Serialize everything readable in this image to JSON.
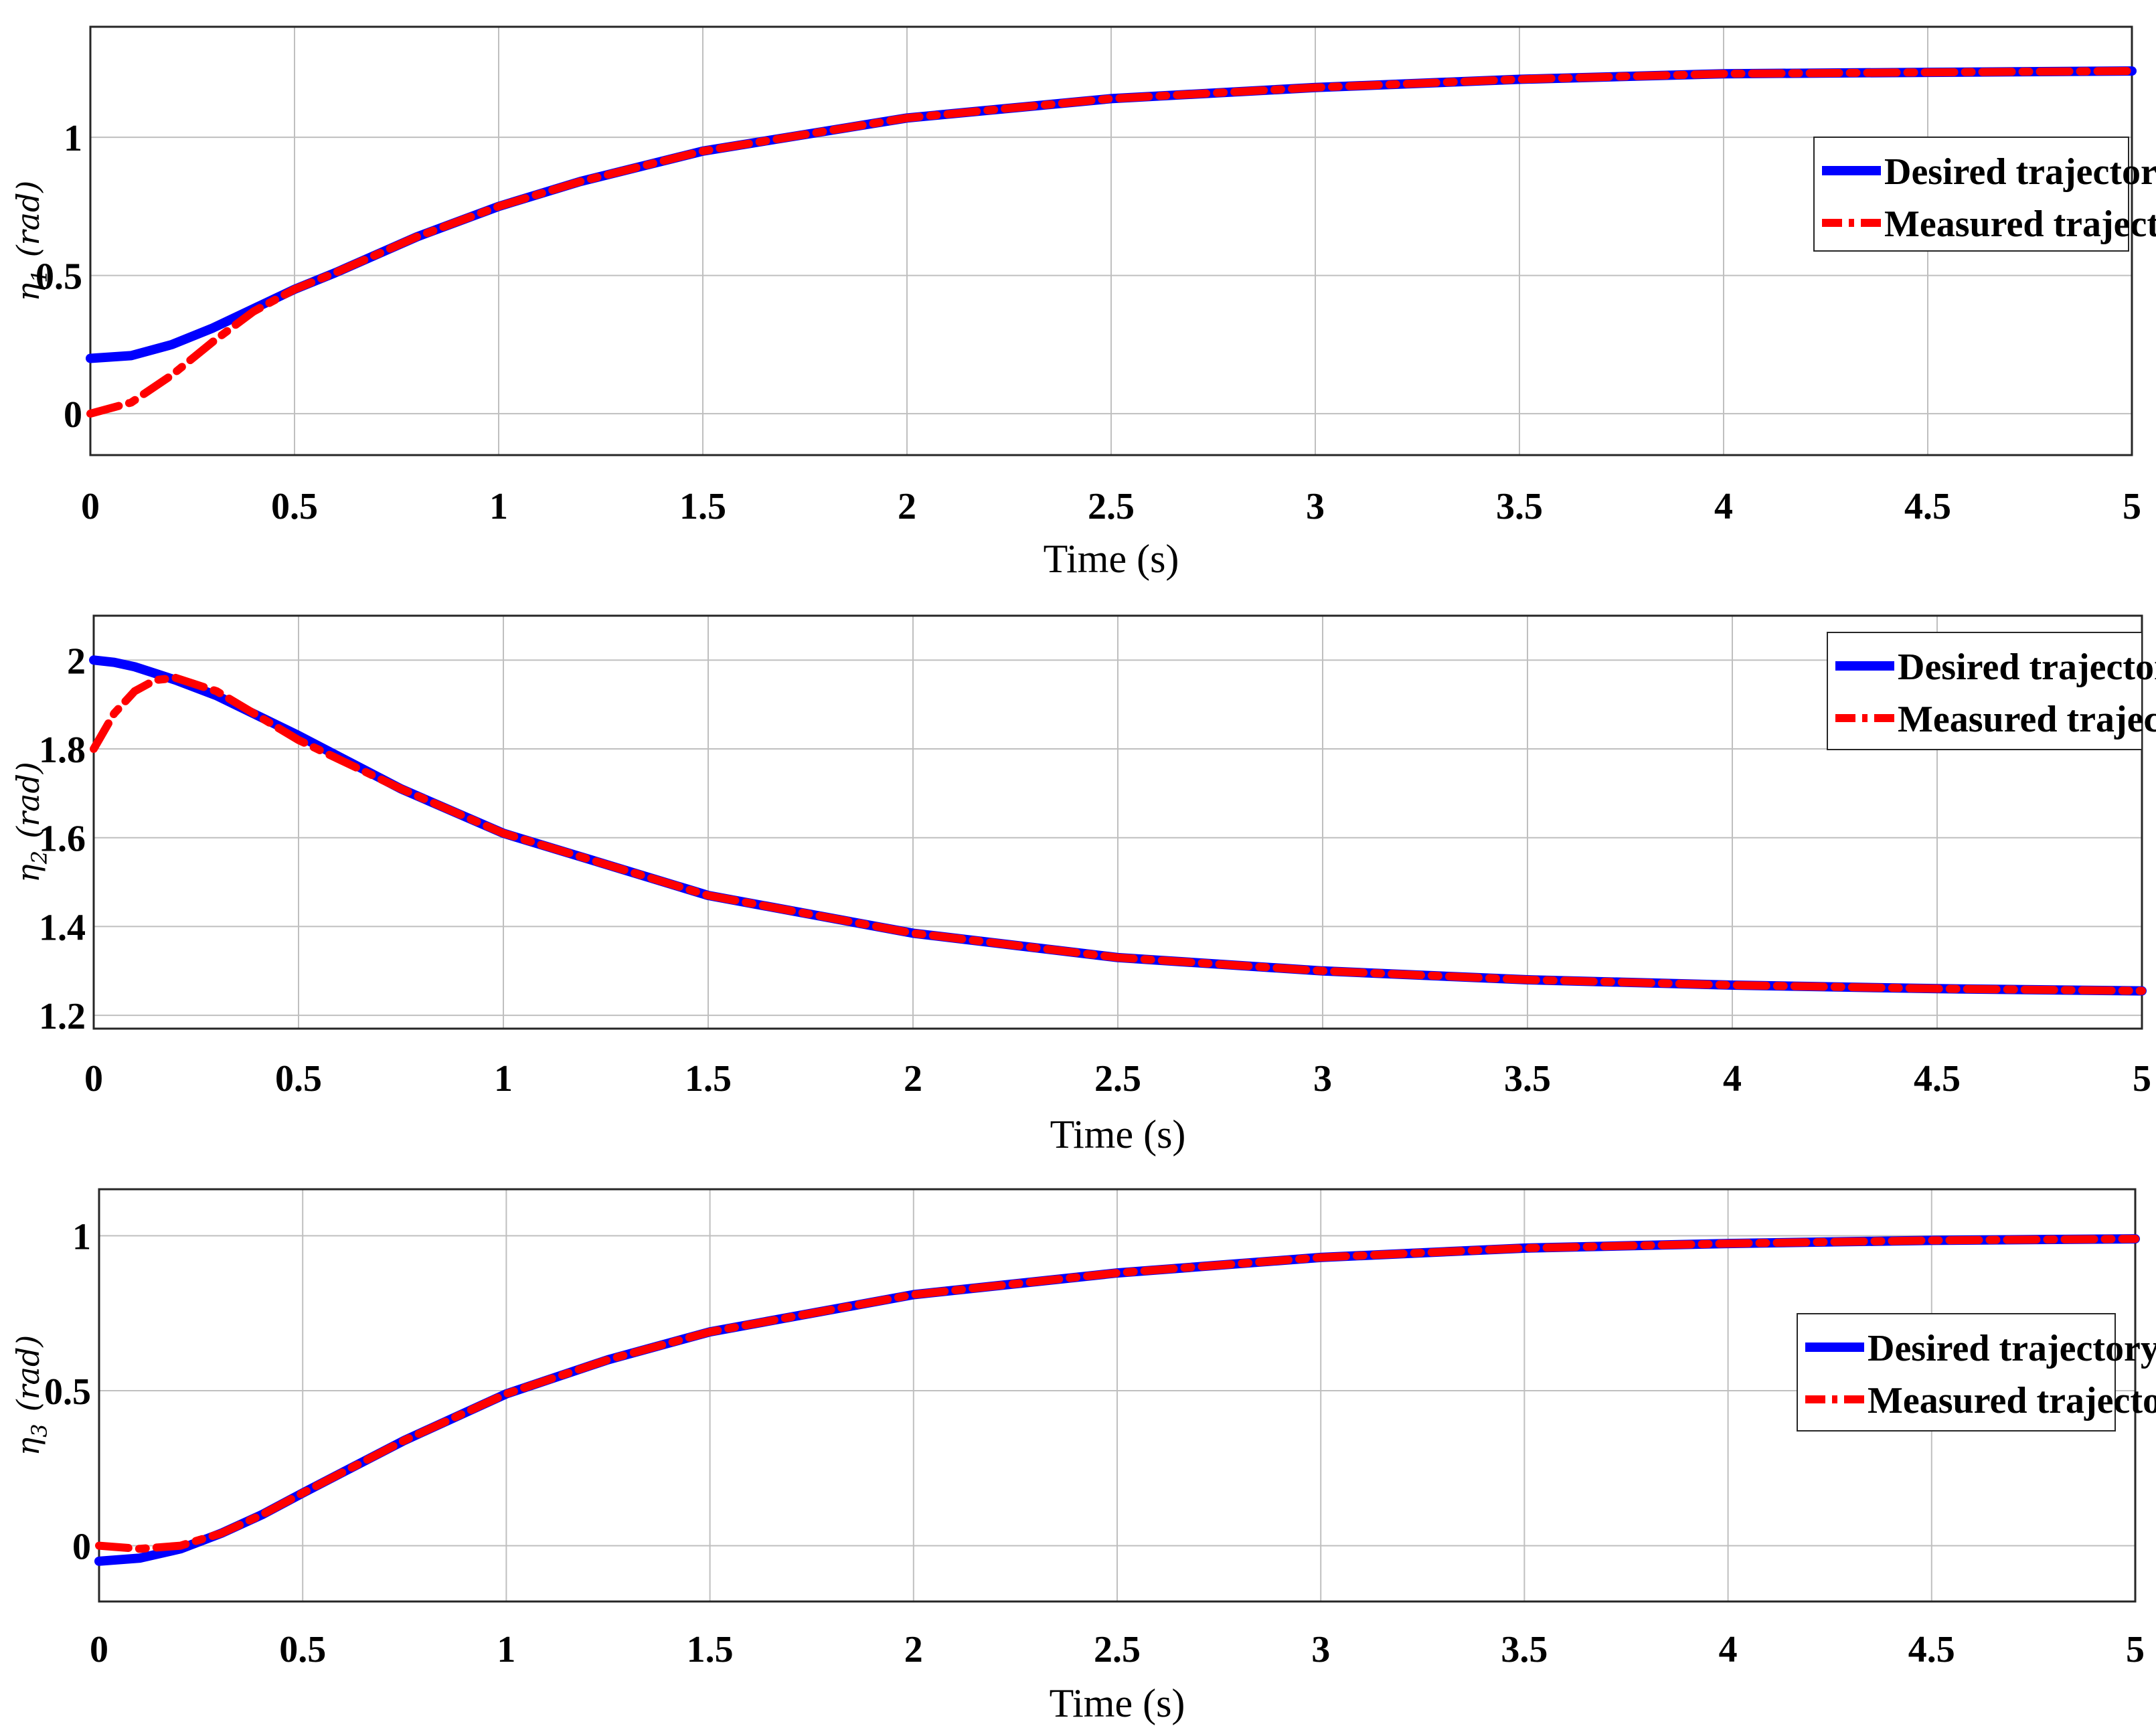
{
  "colors": {
    "desired": "#0000ff",
    "measured": "#ff0000",
    "grid": "#bfbfbf",
    "axes": "#262626"
  },
  "chart_data": [
    {
      "type": "line",
      "xlabel": "Time (s)",
      "ylabel": "η1 (rad)",
      "ylabel_symbol": "η",
      "ylabel_sub": "1",
      "ylabel_unit": "(rad)",
      "xlim": [
        0,
        5
      ],
      "ylim": [
        -0.15,
        1.4
      ],
      "xticks": [
        "0",
        "0.5",
        "1",
        "1.5",
        "2",
        "2.5",
        "3",
        "3.5",
        "4",
        "4.5",
        "5"
      ],
      "yticks": [
        "0",
        "0.5",
        "1"
      ],
      "grid": true,
      "legend": "right",
      "x": [
        0,
        0.1,
        0.2,
        0.3,
        0.4,
        0.5,
        0.6,
        0.8,
        1,
        1.2,
        1.5,
        2,
        2.5,
        3,
        3.5,
        4,
        4.5,
        5
      ],
      "series": [
        {
          "name": "Desired trajectory",
          "values": [
            0.2,
            0.21,
            0.25,
            0.31,
            0.38,
            0.45,
            0.51,
            0.64,
            0.75,
            0.84,
            0.95,
            1.07,
            1.14,
            1.18,
            1.21,
            1.23,
            1.235,
            1.24
          ]
        },
        {
          "name": "Measured trajectory",
          "values": [
            0,
            0.04,
            0.14,
            0.26,
            0.37,
            0.45,
            0.51,
            0.64,
            0.75,
            0.84,
            0.95,
            1.07,
            1.14,
            1.18,
            1.21,
            1.23,
            1.235,
            1.24
          ]
        }
      ]
    },
    {
      "type": "line",
      "xlabel": "Time (s)",
      "ylabel": "η2 (rad)",
      "ylabel_symbol": "η",
      "ylabel_sub": "2",
      "ylabel_unit": "(rad)",
      "xlim": [
        0,
        5
      ],
      "ylim": [
        1.17,
        2.1
      ],
      "xticks": [
        "0",
        "0.5",
        "1",
        "1.5",
        "2",
        "2.5",
        "3",
        "3.5",
        "4",
        "4.5",
        "5"
      ],
      "yticks": [
        "1.2",
        "1.4",
        "1.6",
        "1.8",
        "2"
      ],
      "grid": true,
      "legend": "top-right",
      "x": [
        0,
        0.05,
        0.1,
        0.15,
        0.2,
        0.3,
        0.5,
        0.75,
        1,
        1.5,
        2,
        2.5,
        3,
        3.5,
        4,
        4.5,
        5
      ],
      "series": [
        {
          "name": "Desired trajectory",
          "values": [
            2,
            1.995,
            1.985,
            1.97,
            1.955,
            1.92,
            1.83,
            1.71,
            1.61,
            1.47,
            1.385,
            1.33,
            1.3,
            1.28,
            1.268,
            1.26,
            1.255
          ]
        },
        {
          "name": "Measured trajectory",
          "values": [
            1.8,
            1.88,
            1.93,
            1.955,
            1.96,
            1.93,
            1.82,
            1.71,
            1.61,
            1.47,
            1.385,
            1.33,
            1.3,
            1.28,
            1.268,
            1.26,
            1.255
          ]
        }
      ]
    },
    {
      "type": "line",
      "xlabel": "Time (s)",
      "ylabel": "η3 (rad)",
      "ylabel_symbol": "η",
      "ylabel_sub": "3",
      "ylabel_unit": "(rad)",
      "xlim": [
        0,
        5
      ],
      "ylim": [
        -0.18,
        1.15
      ],
      "xticks": [
        "0",
        "0.5",
        "1",
        "1.5",
        "2",
        "2.5",
        "3",
        "3.5",
        "4",
        "4.5",
        "5"
      ],
      "yticks": [
        "0",
        "0.5",
        "1"
      ],
      "grid": true,
      "legend": "right",
      "x": [
        0,
        0.1,
        0.2,
        0.3,
        0.4,
        0.5,
        0.75,
        1,
        1.25,
        1.5,
        2,
        2.5,
        3,
        3.5,
        4,
        4.5,
        5
      ],
      "series": [
        {
          "name": "Desired trajectory",
          "values": [
            -0.05,
            -0.04,
            -0.01,
            0.04,
            0.1,
            0.17,
            0.34,
            0.49,
            0.6,
            0.69,
            0.81,
            0.88,
            0.93,
            0.96,
            0.975,
            0.985,
            0.99
          ]
        },
        {
          "name": "Measured trajectory",
          "values": [
            0,
            -0.01,
            0,
            0.04,
            0.1,
            0.17,
            0.34,
            0.49,
            0.6,
            0.69,
            0.81,
            0.88,
            0.93,
            0.96,
            0.975,
            0.985,
            0.99
          ]
        }
      ]
    }
  ]
}
